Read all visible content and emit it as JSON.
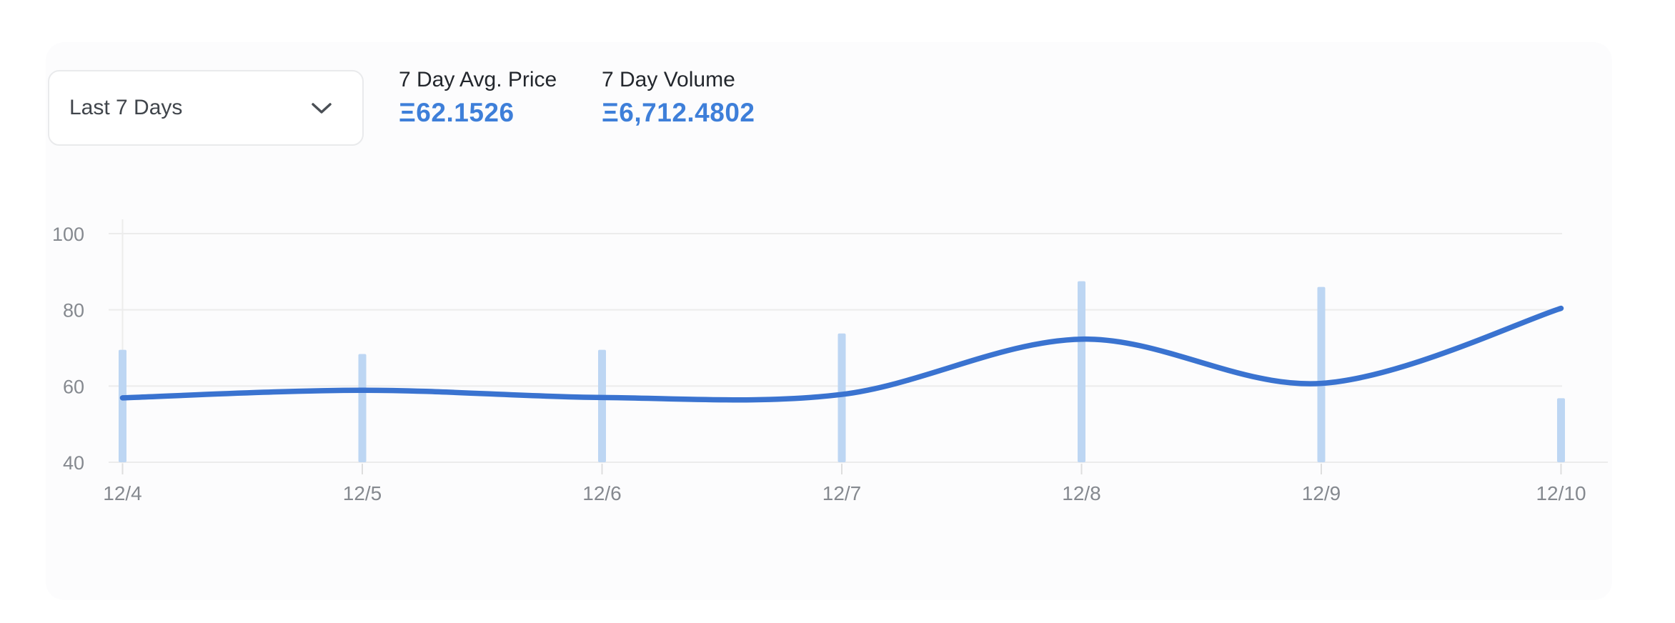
{
  "controls": {
    "range_dropdown": {
      "value": "Last 7 Days",
      "icon": "chevron-down-icon"
    }
  },
  "stats": [
    {
      "label": "7 Day Avg. Price",
      "currency_symbol": "Ξ",
      "value": "Ξ62.1526"
    },
    {
      "label": "7 Day Volume",
      "currency_symbol": "Ξ",
      "value": "Ξ6,712.4802"
    }
  ],
  "theme": {
    "accent_blue": "#3e7fd9",
    "line_blue": "#3a73d0",
    "bar_blue": "#bdd6f3",
    "grid_color": "#ececec",
    "axis_tick_color": "#dedede",
    "axis_label_color": "#85898f",
    "stat_label_color": "#23272d",
    "dropdown_text_color": "#40454b"
  },
  "chart_data": {
    "type": "line+bar combo",
    "categories": [
      "12/4",
      "12/5",
      "12/6",
      "12/7",
      "12/8",
      "12/9",
      "12/10"
    ],
    "series": [
      {
        "name": "7 Day Avg. Price",
        "type": "line",
        "values": [
          56.9,
          58.9,
          57.0,
          57.8,
          72.3,
          60.7,
          80.4
        ]
      },
      {
        "name": "7 Day Volume",
        "type": "bar",
        "values": [
          69.5,
          68.4,
          69.5,
          73.8,
          87.5,
          86.0,
          56.8
        ],
        "note": "bar tops as plotted on the shared 40-100 axis"
      }
    ],
    "title": "",
    "xlabel": "",
    "ylabel": "",
    "yticks": [
      100,
      80,
      60,
      40
    ],
    "ylim": [
      40,
      100
    ],
    "grid": "horizontal",
    "legend": "none"
  }
}
